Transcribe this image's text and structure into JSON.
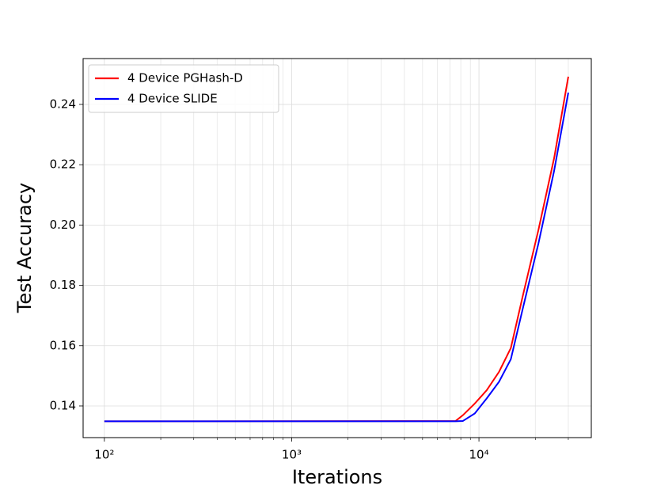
{
  "chart_data": {
    "type": "line",
    "xlabel": "Iterations",
    "ylabel": "Test Accuracy",
    "x": [
      100,
      7500,
      8200,
      9500,
      11000,
      12800,
      14800,
      17100,
      20800,
      25200,
      30000
    ],
    "series": [
      {
        "name": "4 Device PGHash-D",
        "color": "#ff0000",
        "values": [
          0.1349,
          0.135,
          0.1369,
          0.1408,
          0.1452,
          0.1513,
          0.1592,
          0.1762,
          0.1985,
          0.2222,
          0.2492
        ]
      },
      {
        "name": "4 Device SLIDE",
        "color": "#0000ff",
        "values": [
          0.1349,
          0.1349,
          0.135,
          0.1375,
          0.1425,
          0.148,
          0.1555,
          0.172,
          0.194,
          0.218,
          0.2439
        ]
      }
    ],
    "xscale": "log",
    "xlim": [
      77,
      39800
    ],
    "xticks": [
      {
        "value": 100,
        "label": "10²"
      },
      {
        "value": 1000,
        "label": "10³"
      },
      {
        "value": 10000,
        "label": "10⁴"
      }
    ],
    "xminorticks": [
      200,
      300,
      400,
      500,
      600,
      700,
      800,
      900,
      2000,
      3000,
      4000,
      5000,
      6000,
      7000,
      8000,
      9000,
      20000,
      30000
    ],
    "ylim": [
      0.1295,
      0.2552
    ],
    "yticks": [
      0.14,
      0.16,
      0.18,
      {
        "value": 0.2,
        "label": "0.20"
      },
      0.22,
      0.24
    ],
    "grid": true,
    "legend": "upper left"
  }
}
